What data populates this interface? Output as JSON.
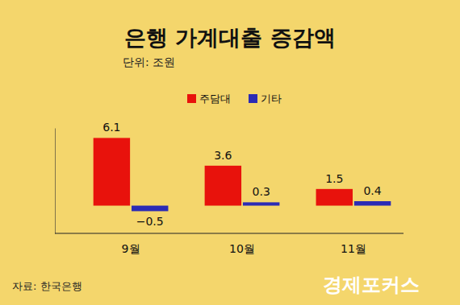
{
  "chart_data": {
    "type": "bar",
    "title": "은행 가계대출 증감액",
    "subtitle": "단위: 조원",
    "source": "자료: 한국은행",
    "logo_text": "경제포커스",
    "categories": [
      "9월",
      "10월",
      "11월"
    ],
    "series": [
      {
        "name": "주담대",
        "color": "#e8120c",
        "values": [
          6.1,
          3.6,
          1.5
        ]
      },
      {
        "name": "기타",
        "color": "#2b2bb5",
        "values": [
          -0.5,
          0.3,
          0.4
        ],
        "value_labels": [
          "−0.5",
          "0.3",
          "0.4"
        ]
      }
    ],
    "ylim": [
      -2.5,
      7
    ],
    "yticks": [],
    "tick_labels": "x",
    "grid": false,
    "legend": "top",
    "data_labels": true
  }
}
